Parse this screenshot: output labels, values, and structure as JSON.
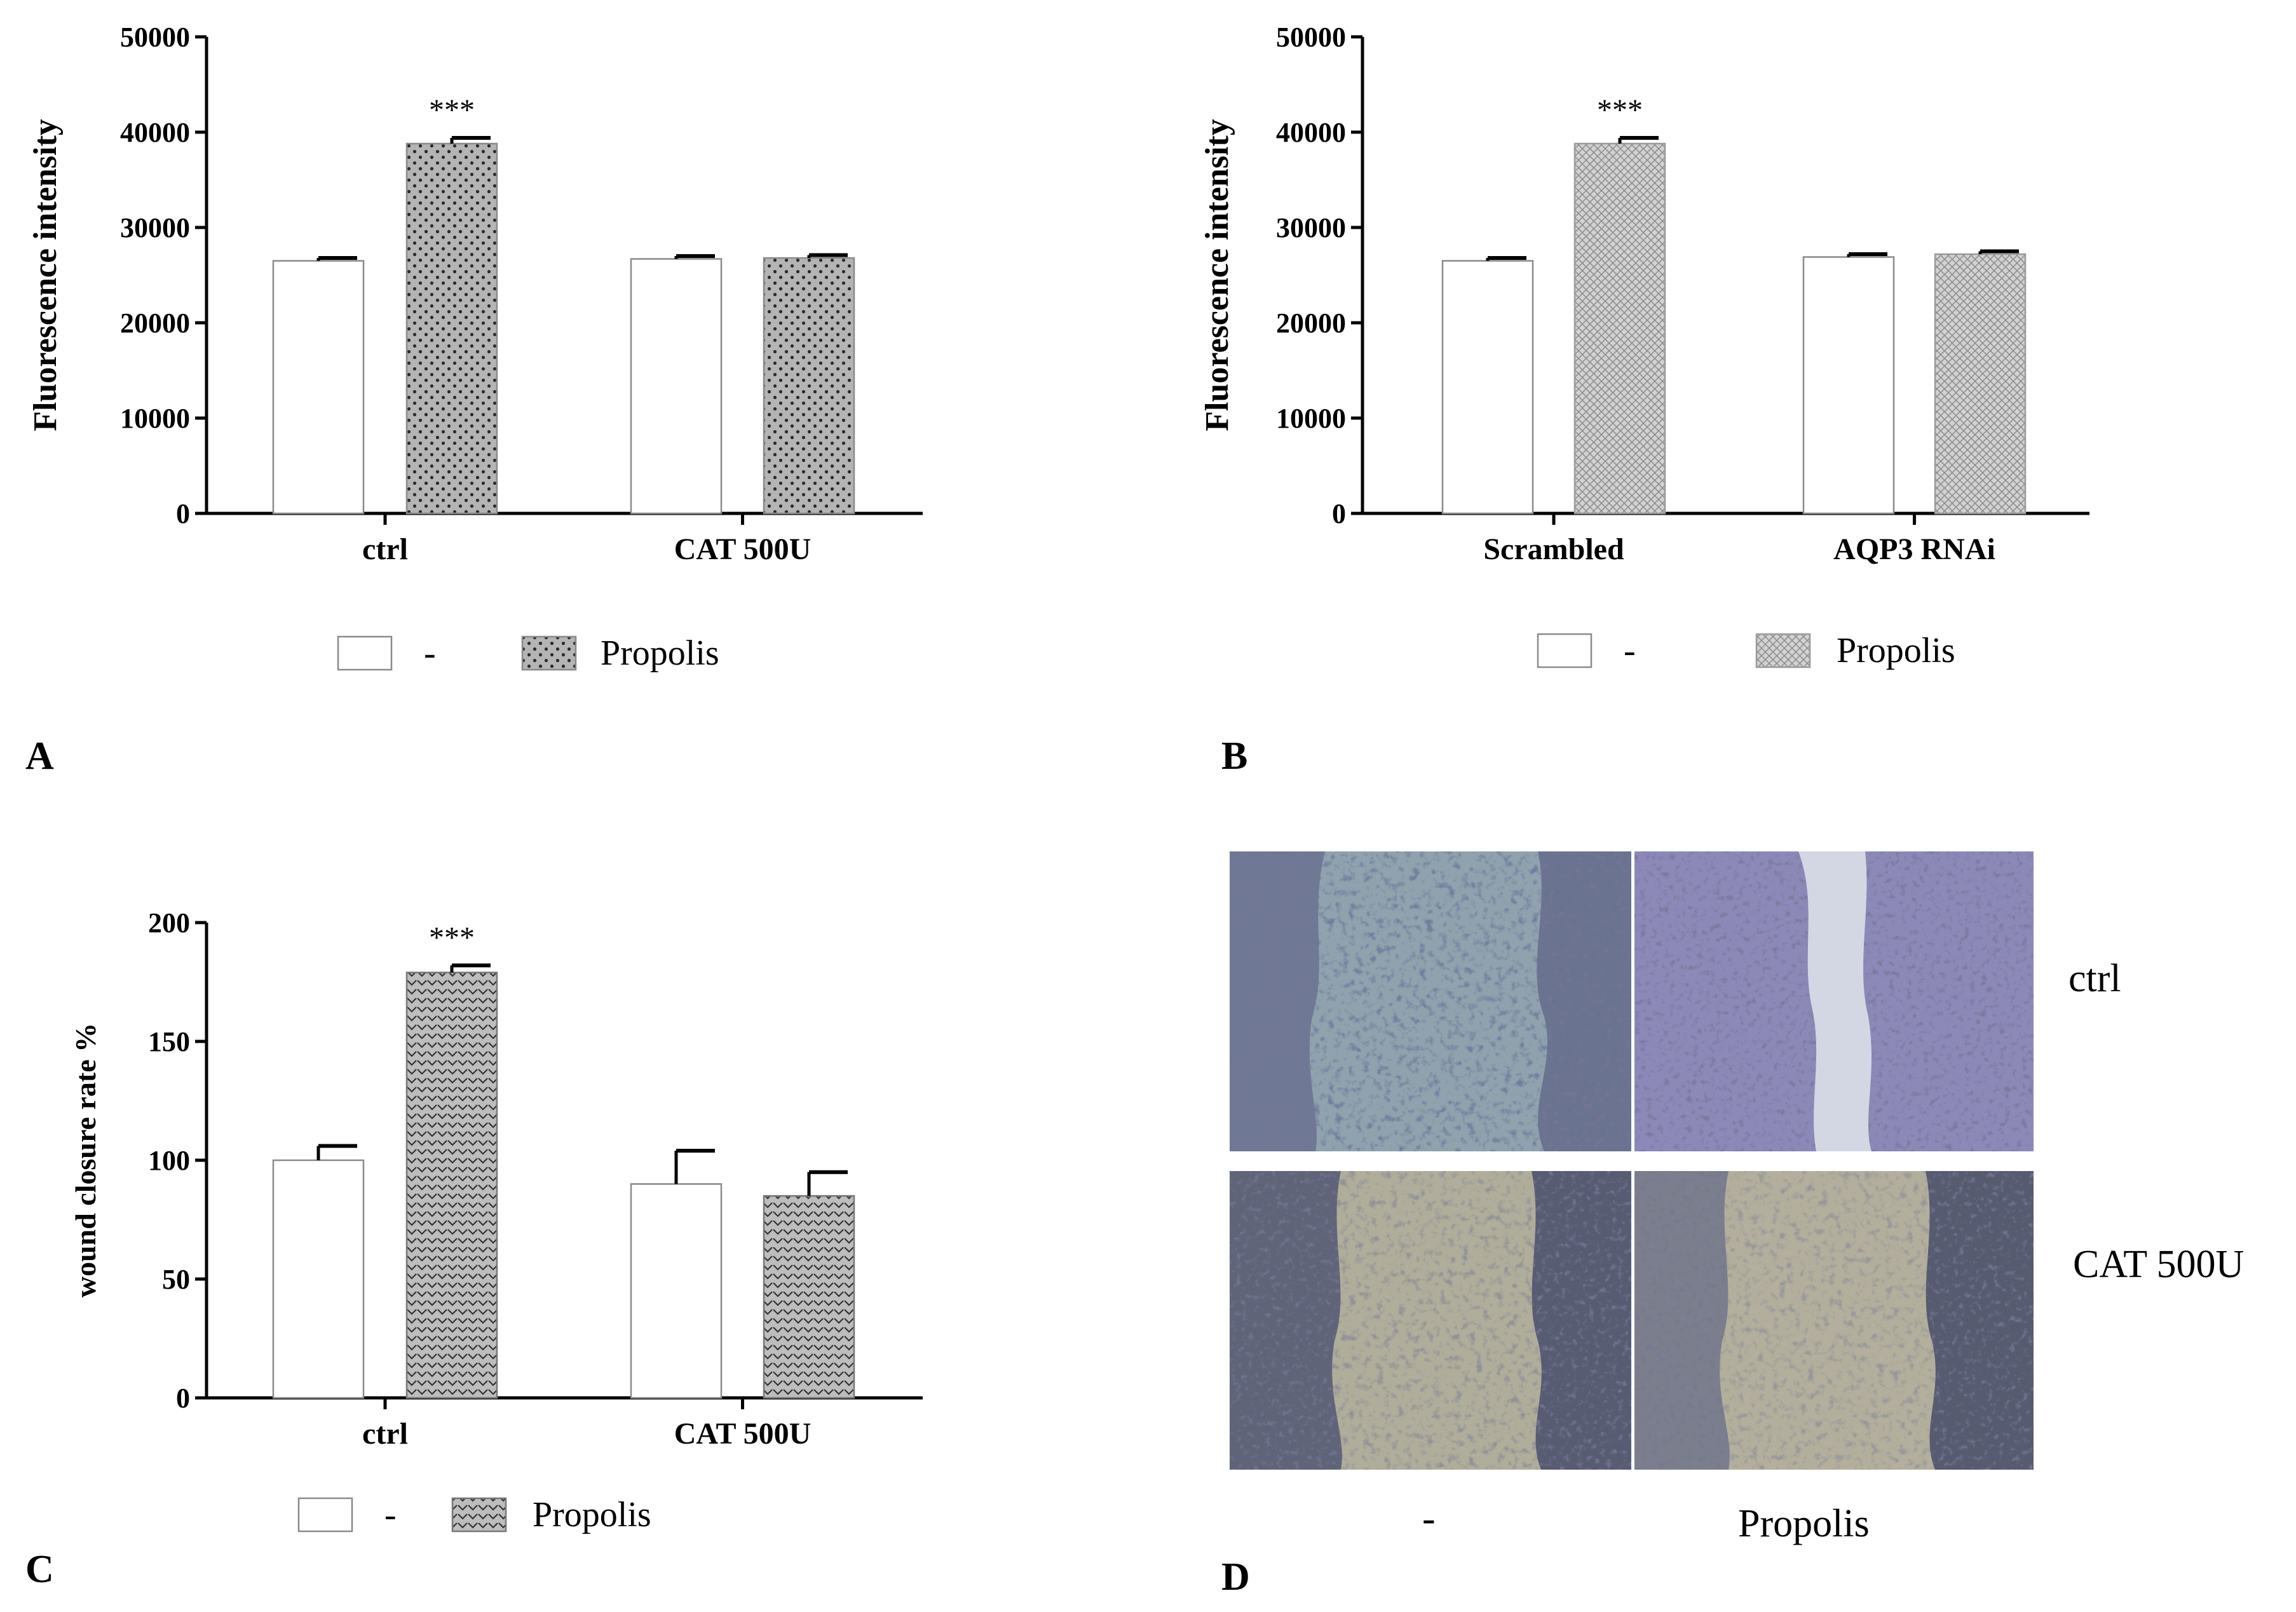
{
  "colors": {
    "axis": "#000000",
    "open_bar_fill": "#ffffff",
    "open_bar_stroke": "#8a8a8a",
    "dot_fill": "#b4b4b4",
    "dot_color": "#2a2a2a",
    "check_fill": "#d2d2d2",
    "check_color": "#8f8f8f",
    "chevron_fill": "#bdbdbd",
    "chevron_color": "#333333"
  },
  "chart_data": [
    {
      "panel": "A",
      "type": "bar",
      "categories": [
        "ctrl",
        "CAT 500U"
      ],
      "ylabel": "Fluorescence intensity",
      "ylim": [
        0,
        50000
      ],
      "yticks": [
        "0",
        "10000",
        "20000",
        "30000",
        "40000",
        "50000"
      ],
      "series": [
        {
          "name": "-",
          "pattern": "open",
          "values": [
            26500,
            26700
          ],
          "errors": [
            300,
            300
          ]
        },
        {
          "name": "Propolis",
          "pattern": "dots",
          "values": [
            38800,
            26800
          ],
          "errors": [
            600,
            300
          ]
        }
      ],
      "annotations": [
        {
          "category": 0,
          "series": 1,
          "text": "***"
        }
      ],
      "legend_placement": "bottom"
    },
    {
      "panel": "B",
      "type": "bar",
      "categories": [
        "Scrambled",
        "AQP3 RNAi"
      ],
      "ylabel": "Fluorescence intensity",
      "ylim": [
        0,
        50000
      ],
      "yticks": [
        "0",
        "10000",
        "20000",
        "30000",
        "40000",
        "50000"
      ],
      "series": [
        {
          "name": "-",
          "pattern": "open",
          "values": [
            26500,
            26900
          ],
          "errors": [
            300,
            300
          ]
        },
        {
          "name": "Propolis",
          "pattern": "check",
          "values": [
            38800,
            27200
          ],
          "errors": [
            600,
            300
          ]
        }
      ],
      "annotations": [
        {
          "category": 0,
          "series": 1,
          "text": "***"
        }
      ],
      "legend_placement": "bottom"
    },
    {
      "panel": "C",
      "type": "bar",
      "categories": [
        "ctrl",
        "CAT 500U"
      ],
      "ylabel": "wound closure rate %",
      "ylim": [
        0,
        200
      ],
      "yticks": [
        "0",
        "50",
        "100",
        "150",
        "200"
      ],
      "series": [
        {
          "name": "-",
          "pattern": "open",
          "values": [
            100,
            90
          ],
          "errors": [
            6,
            14
          ]
        },
        {
          "name": "Propolis",
          "pattern": "chevron",
          "values": [
            179,
            85
          ],
          "errors": [
            3,
            10
          ]
        }
      ],
      "annotations": [
        {
          "category": 0,
          "series": 1,
          "text": "***"
        }
      ],
      "legend_placement": "bottom"
    }
  ],
  "photo_panel": {
    "panel": "D",
    "rows": [
      "ctrl",
      "CAT 500U"
    ],
    "columns": [
      "-",
      "Propolis"
    ]
  }
}
